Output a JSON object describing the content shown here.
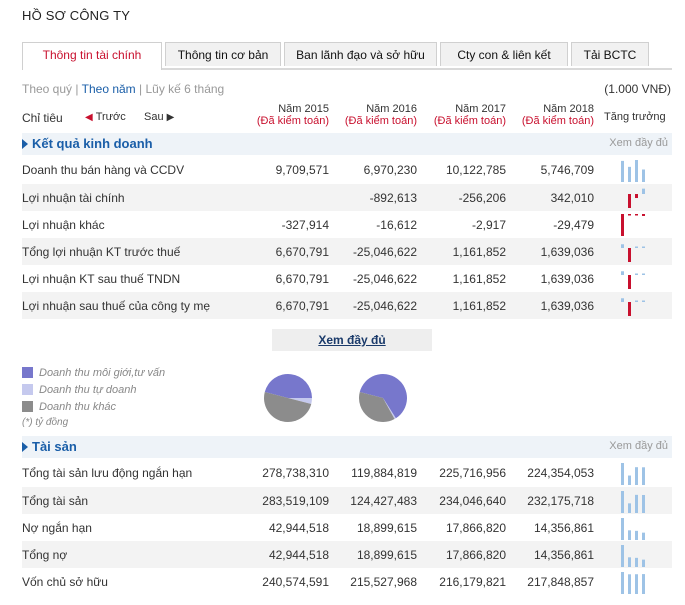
{
  "title": "HỒ SƠ CÔNG TY",
  "tabs": [
    {
      "label": "Thông tin tài chính",
      "active": true
    },
    {
      "label": "Thông tin cơ bản"
    },
    {
      "label": "Ban lãnh đạo và sở hữu"
    },
    {
      "label": "Cty con & liên kết"
    },
    {
      "label": "Tải BCTC"
    }
  ],
  "period": {
    "quarter": "Theo quý",
    "year": "Theo năm",
    "ytd": "Lũy kế 6 tháng",
    "sep": "|"
  },
  "unit": "(1.000 VNĐ)",
  "header": {
    "chitieu": "Chỉ tiêu",
    "prev": "Trước",
    "next": "Sau",
    "growth": "Tăng trưởng",
    "years": [
      {
        "year": "Năm 2015",
        "audit": "(Đã kiểm toán)"
      },
      {
        "year": "Năm 2016",
        "audit": "(Đã kiểm toán)"
      },
      {
        "year": "Năm 2017",
        "audit": "(Đã kiểm toán)"
      },
      {
        "year": "Năm 2018",
        "audit": "(Đã kiểm toán)"
      }
    ]
  },
  "colors": {
    "accent": "#c8102e",
    "link": "#1a5ea8",
    "spark_pos": "#9ec3e6",
    "spark_neg": "#c8102e"
  },
  "sections": [
    {
      "name": "Kết quả kinh doanh",
      "more": "Xem đầy đủ",
      "rows": [
        {
          "label": "Doanh thu bán hàng và CCDV",
          "values": [
            "9,709,571",
            "6,970,230",
            "10,122,785",
            "5,746,709"
          ],
          "raw": [
            9709571,
            6970230,
            10122785,
            5746709
          ]
        },
        {
          "label": "Lợi nhuận tài chính",
          "values": [
            "",
            "-892,613",
            "-256,206",
            "342,010"
          ],
          "raw": [
            0,
            -892613,
            -256206,
            342010
          ]
        },
        {
          "label": "Lợi nhuận khác",
          "values": [
            "-327,914",
            "-16,612",
            "-2,917",
            "-29,479"
          ],
          "raw": [
            -327914,
            -16612,
            -2917,
            -29479
          ]
        },
        {
          "label": "Tổng lợi nhuận KT trước thuế",
          "values": [
            "6,670,791",
            "-25,046,622",
            "1,161,852",
            "1,639,036"
          ],
          "raw": [
            6670791,
            -25046622,
            1161852,
            1639036
          ]
        },
        {
          "label": "Lợi nhuận KT sau thuế TNDN",
          "values": [
            "6,670,791",
            "-25,046,622",
            "1,161,852",
            "1,639,036"
          ],
          "raw": [
            6670791,
            -25046622,
            1161852,
            1639036
          ]
        },
        {
          "label": "Lợi nhuận sau thuế của công ty mẹ",
          "values": [
            "6,670,791",
            "-25,046,622",
            "1,161,852",
            "1,639,036"
          ],
          "raw": [
            6670791,
            -25046622,
            1161852,
            1639036
          ]
        }
      ]
    },
    {
      "name": "Tài sản",
      "more": "Xem đầy đủ",
      "rows": [
        {
          "label": "Tổng tài sản lưu động ngắn hạn",
          "values": [
            "278,738,310",
            "119,884,819",
            "225,716,956",
            "224,354,053"
          ],
          "raw": [
            278738310,
            119884819,
            225716956,
            224354053
          ]
        },
        {
          "label": "Tổng tài sản",
          "values": [
            "283,519,109",
            "124,427,483",
            "234,046,640",
            "232,175,718"
          ],
          "raw": [
            283519109,
            124427483,
            234046640,
            232175718
          ]
        },
        {
          "label": "Nợ ngắn hạn",
          "values": [
            "42,944,518",
            "18,899,615",
            "17,866,820",
            "14,356,861"
          ],
          "raw": [
            42944518,
            18899615,
            17866820,
            14356861
          ]
        },
        {
          "label": "Tổng nợ",
          "values": [
            "42,944,518",
            "18,899,615",
            "17,866,820",
            "14,356,861"
          ],
          "raw": [
            42944518,
            18899615,
            17866820,
            14356861
          ]
        },
        {
          "label": "Vốn chủ sở hữu",
          "values": [
            "240,574,591",
            "215,527,968",
            "216,179,821",
            "217,848,857"
          ],
          "raw": [
            240574591,
            215527968,
            216179821,
            217848857
          ]
        }
      ]
    }
  ],
  "more_button": "Xem đầy đủ",
  "legend": {
    "items": [
      {
        "label": "Doanh thu môi giới,tư vấn",
        "color": "#7777cc"
      },
      {
        "label": "Doanh thu tự doanh",
        "color": "#c5c9ee"
      },
      {
        "label": "Doanh thu khác",
        "color": "#8c8c8c"
      }
    ],
    "note": "(*) tỷ đồng"
  },
  "pies": [
    {
      "slices": [
        {
          "name": "Doanh thu môi giới,tư vấn",
          "pct": 46,
          "color": "#7777cc"
        },
        {
          "name": "Doanh thu tự doanh",
          "pct": 4,
          "color": "#c5c9ee"
        },
        {
          "name": "Doanh thu khác",
          "pct": 50,
          "color": "#8c8c8c"
        }
      ]
    },
    {
      "slices": [
        {
          "name": "Doanh thu môi giới,tư vấn",
          "pct": 62,
          "color": "#7777cc"
        },
        {
          "name": "Doanh thu tự doanh",
          "pct": 1,
          "color": "#c5c9ee"
        },
        {
          "name": "Doanh thu khác",
          "pct": 37,
          "color": "#8c8c8c"
        }
      ]
    }
  ]
}
